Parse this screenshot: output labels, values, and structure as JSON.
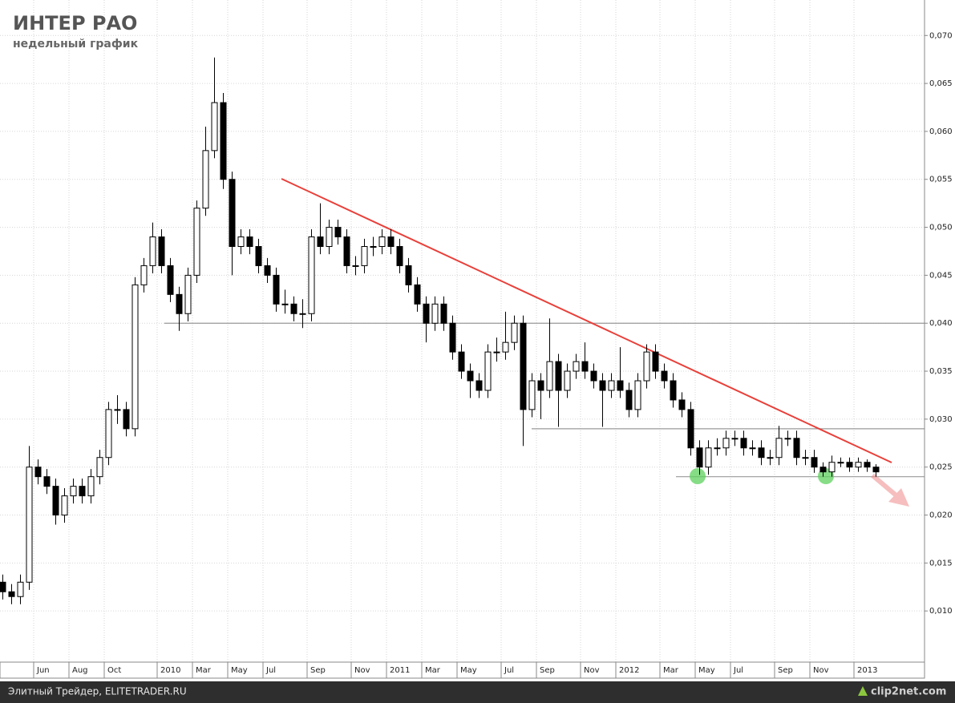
{
  "chart_data": {
    "type": "candlestick",
    "title": "ИНТЕР РАО",
    "subtitle": "недельный график",
    "categories": [
      null,
      null,
      null,
      null,
      "Jun",
      null,
      null,
      null,
      "Aug",
      null,
      null,
      null,
      "Oct",
      null,
      null,
      null,
      null,
      null,
      "2010",
      null,
      null,
      null,
      "Mar",
      null,
      null,
      null,
      "May",
      null,
      null,
      null,
      "Jul",
      null,
      null,
      null,
      null,
      "Sep",
      null,
      null,
      null,
      null,
      "Nov",
      null,
      null,
      null,
      "2011",
      null,
      null,
      null,
      "Mar",
      null,
      null,
      null,
      "May",
      null,
      null,
      null,
      null,
      "Jul",
      null,
      null,
      null,
      "Sep",
      null,
      null,
      null,
      null,
      "Nov",
      null,
      null,
      null,
      "2012",
      null,
      null,
      null,
      null,
      "Mar",
      null,
      null,
      null,
      "May",
      null,
      null,
      null,
      "Jul",
      null,
      null,
      null,
      null,
      "Sep",
      null,
      null,
      null,
      "Nov",
      null,
      null,
      null,
      null,
      "2013",
      null,
      null
    ],
    "open": [
      0.013,
      0.012,
      0.0115,
      0.013,
      0.025,
      0.024,
      0.023,
      0.02,
      0.022,
      0.023,
      0.022,
      0.024,
      0.026,
      0.031,
      0.031,
      0.029,
      0.044,
      0.046,
      0.049,
      0.046,
      0.043,
      0.041,
      0.045,
      0.052,
      0.058,
      0.063,
      0.055,
      0.048,
      0.049,
      0.048,
      0.046,
      0.045,
      0.042,
      0.042,
      0.041,
      0.041,
      0.049,
      0.048,
      0.05,
      0.049,
      0.046,
      0.046,
      0.048,
      0.048,
      0.049,
      0.048,
      0.046,
      0.044,
      0.042,
      0.04,
      0.042,
      0.04,
      0.037,
      0.035,
      0.034,
      0.033,
      0.037,
      0.037,
      0.038,
      0.04,
      0.031,
      0.034,
      0.033,
      0.036,
      0.033,
      0.035,
      0.036,
      0.035,
      0.034,
      0.033,
      0.034,
      0.033,
      0.031,
      0.034,
      0.037,
      0.035,
      0.034,
      0.032,
      0.031,
      0.027,
      0.025,
      0.027,
      0.027,
      0.028,
      0.028,
      0.027,
      0.027,
      0.026,
      0.026,
      0.028,
      0.028,
      0.026,
      0.026,
      0.025,
      0.0245,
      0.0255,
      0.0255,
      0.025,
      0.0255,
      0.025
    ],
    "high": [
      0.0138,
      0.0128,
      0.0138,
      0.0272,
      0.0258,
      0.0248,
      0.0238,
      0.0228,
      0.0238,
      0.0238,
      0.0248,
      0.0268,
      0.0318,
      0.0325,
      0.0318,
      0.0448,
      0.0468,
      0.0505,
      0.0498,
      0.0468,
      0.0438,
      0.0458,
      0.0528,
      0.0605,
      0.0677,
      0.064,
      0.0558,
      0.0498,
      0.0498,
      0.0488,
      0.0468,
      0.0458,
      0.0435,
      0.0428,
      0.0425,
      0.0498,
      0.0525,
      0.0508,
      0.0508,
      0.0498,
      0.047,
      0.0488,
      0.049,
      0.0498,
      0.0498,
      0.0488,
      0.0468,
      0.0448,
      0.0428,
      0.0428,
      0.0428,
      0.0408,
      0.0378,
      0.0358,
      0.0348,
      0.0378,
      0.0385,
      0.0412,
      0.0408,
      0.0408,
      0.0348,
      0.0348,
      0.0405,
      0.0368,
      0.0358,
      0.0368,
      0.038,
      0.0358,
      0.0348,
      0.0348,
      0.0375,
      0.0338,
      0.0348,
      0.0378,
      0.0378,
      0.0358,
      0.0348,
      0.0328,
      0.0318,
      0.0278,
      0.0278,
      0.028,
      0.0288,
      0.0288,
      0.0288,
      0.0278,
      0.0278,
      0.0268,
      0.0293,
      0.0288,
      0.0288,
      0.0268,
      0.0268,
      0.0255,
      0.0262,
      0.026,
      0.026,
      0.026,
      0.0258,
      0.0253
    ],
    "low": [
      0.0112,
      0.0107,
      0.0107,
      0.0122,
      0.0232,
      0.0222,
      0.019,
      0.0192,
      0.0212,
      0.0212,
      0.0212,
      0.0232,
      0.0252,
      0.0295,
      0.0282,
      0.0282,
      0.0432,
      0.0452,
      0.0452,
      0.0422,
      0.0392,
      0.0402,
      0.0442,
      0.0512,
      0.0572,
      0.054,
      0.045,
      0.0472,
      0.0472,
      0.0452,
      0.0442,
      0.0412,
      0.041,
      0.0402,
      0.0395,
      0.0402,
      0.0472,
      0.0472,
      0.0482,
      0.0452,
      0.045,
      0.0452,
      0.047,
      0.0472,
      0.0472,
      0.0452,
      0.0432,
      0.0412,
      0.038,
      0.0392,
      0.0392,
      0.0362,
      0.0342,
      0.0322,
      0.0322,
      0.0322,
      0.036,
      0.0362,
      0.0372,
      0.0272,
      0.0302,
      0.03,
      0.0322,
      0.0292,
      0.0322,
      0.0342,
      0.0342,
      0.0332,
      0.0292,
      0.0322,
      0.0322,
      0.0302,
      0.0302,
      0.0332,
      0.0342,
      0.0332,
      0.0312,
      0.0302,
      0.0262,
      0.0242,
      0.0242,
      0.0262,
      0.0262,
      0.0272,
      0.0262,
      0.0262,
      0.0252,
      0.0252,
      0.0252,
      0.0272,
      0.0252,
      0.0252,
      0.0244,
      0.024,
      0.024,
      0.025,
      0.0245,
      0.0245,
      0.0245,
      0.024
    ],
    "close": [
      0.012,
      0.0115,
      0.013,
      0.025,
      0.024,
      0.023,
      0.02,
      0.022,
      0.023,
      0.022,
      0.024,
      0.026,
      0.031,
      0.031,
      0.029,
      0.044,
      0.046,
      0.049,
      0.046,
      0.043,
      0.041,
      0.045,
      0.052,
      0.058,
      0.063,
      0.055,
      0.048,
      0.049,
      0.048,
      0.046,
      0.045,
      0.042,
      0.042,
      0.041,
      0.041,
      0.049,
      0.048,
      0.05,
      0.049,
      0.046,
      0.046,
      0.048,
      0.048,
      0.049,
      0.048,
      0.046,
      0.044,
      0.042,
      0.04,
      0.042,
      0.04,
      0.037,
      0.035,
      0.034,
      0.033,
      0.037,
      0.037,
      0.038,
      0.04,
      0.031,
      0.034,
      0.033,
      0.036,
      0.033,
      0.035,
      0.036,
      0.035,
      0.034,
      0.033,
      0.034,
      0.033,
      0.031,
      0.034,
      0.037,
      0.035,
      0.034,
      0.032,
      0.031,
      0.027,
      0.025,
      0.027,
      0.027,
      0.028,
      0.028,
      0.027,
      0.027,
      0.026,
      0.026,
      0.028,
      0.028,
      0.026,
      0.026,
      0.025,
      0.0245,
      0.0255,
      0.0255,
      0.025,
      0.0255,
      0.025,
      0.0245
    ],
    "up_color": "#ffffff",
    "down_color": "#000000",
    "levels": [
      0.04,
      0.029,
      0.024
    ],
    "level_color": "#9a9a9a",
    "ylim": [
      0.005,
      0.0737
    ],
    "yticks": [
      {
        "value": 0.01,
        "label": "0,010"
      },
      {
        "value": 0.015,
        "label": "0,015"
      },
      {
        "value": 0.02,
        "label": "0,020"
      },
      {
        "value": 0.025,
        "label": "0,025"
      },
      {
        "value": 0.03,
        "label": "0,030"
      },
      {
        "value": 0.035,
        "label": "0,035"
      },
      {
        "value": 0.04,
        "label": "0,040"
      },
      {
        "value": 0.045,
        "label": "0,045"
      },
      {
        "value": 0.05,
        "label": "0,050"
      },
      {
        "value": 0.055,
        "label": "0,055"
      },
      {
        "value": 0.06,
        "label": "0,060"
      },
      {
        "value": 0.065,
        "label": "0,065"
      },
      {
        "value": 0.07,
        "label": "0,070"
      }
    ],
    "grid": true
  },
  "footer": {
    "source": "Элитный Трейдер, ELITETRADER.RU",
    "watermark": "clip2net.com"
  }
}
